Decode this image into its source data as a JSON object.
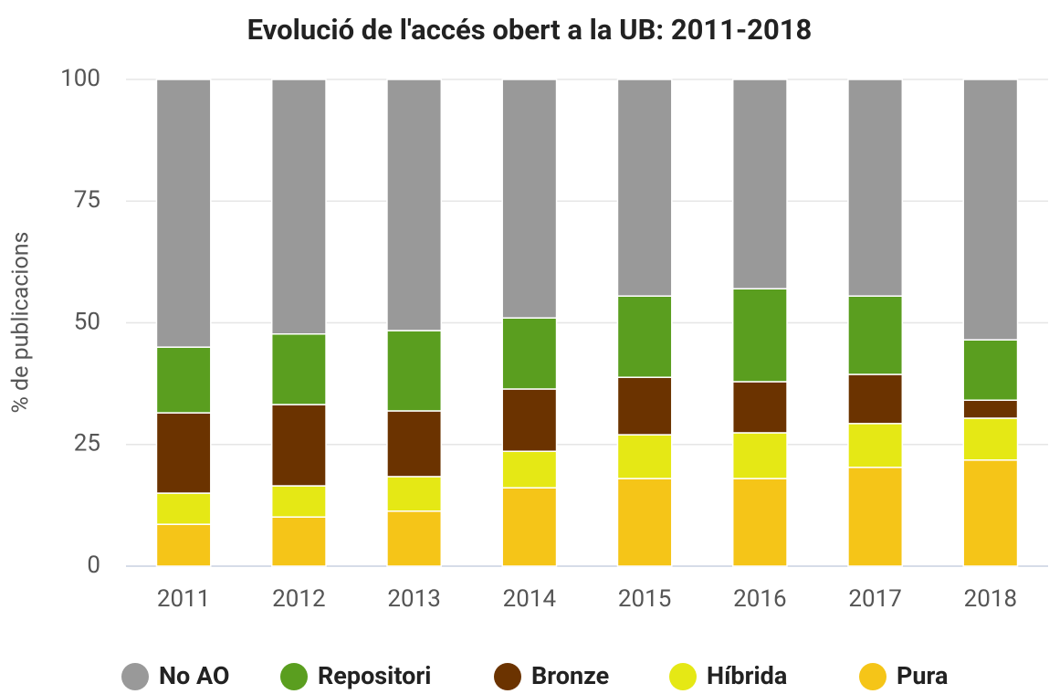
{
  "chart_data": {
    "type": "stacked_bar",
    "title": "Evolució de l'accés obert a la UB: 2011-2018",
    "y_label": "% de publicacions",
    "categories": [
      "2011",
      "2012",
      "2013",
      "2014",
      "2015",
      "2016",
      "2017",
      "2018"
    ],
    "series": [
      {
        "name": "No AO",
        "color": "#999999",
        "values": [
          55.0,
          52.3,
          51.6,
          49.0,
          44.5,
          43.0,
          44.5,
          53.5
        ]
      },
      {
        "name": "Repositori",
        "color": "#5a9e1f",
        "values": [
          13.5,
          14.5,
          16.5,
          14.6,
          16.7,
          19.1,
          16.1,
          12.4
        ]
      },
      {
        "name": "Bronze",
        "color": "#6b3300",
        "values": [
          16.5,
          16.7,
          13.5,
          12.8,
          11.8,
          10.5,
          10.1,
          3.7
        ]
      },
      {
        "name": "Híbrida",
        "color": "#e5e815",
        "values": [
          6.4,
          6.4,
          7.1,
          7.5,
          9.0,
          9.4,
          9.0,
          8.6
        ]
      },
      {
        "name": "Pura",
        "color": "#f5c518",
        "values": [
          8.6,
          10.1,
          11.3,
          16.1,
          18.0,
          18.0,
          20.3,
          21.8
        ]
      }
    ],
    "ylim": [
      0,
      100
    ],
    "yticks": [
      0,
      25,
      50,
      75,
      100
    ],
    "grid": true,
    "legend": "bottom"
  }
}
